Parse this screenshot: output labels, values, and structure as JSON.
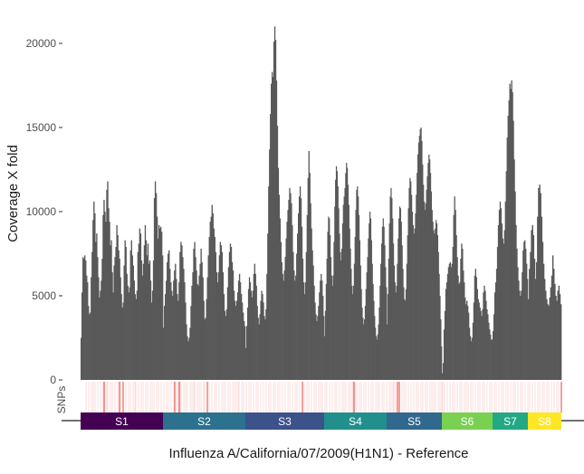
{
  "chart_data": {
    "type": "bar",
    "xlabel": "Influenza A/California/07/2009(H1N1) - Reference",
    "ylabel": "Coverage X fold",
    "ylim": [
      0,
      21500
    ],
    "yticks": [
      0,
      5000,
      10000,
      15000,
      20000
    ],
    "grid": false,
    "bar_color": "#595959",
    "snp_track_label": "SNPs",
    "snp_color": "#e8413a",
    "segments": [
      {
        "name": "S1",
        "color": "#440154",
        "coverage": [
          2500,
          5200,
          7300,
          7200,
          7400,
          7100,
          6200,
          5800,
          4400,
          3900,
          4000,
          6100,
          7600,
          9500,
          10600,
          9900,
          8200,
          8700,
          7300,
          6100,
          4900,
          5300,
          5900,
          7200,
          9800,
          10700,
          10000,
          9400,
          11300,
          11800,
          10200,
          9400,
          8000,
          8300,
          6400,
          5200,
          6800,
          7300,
          7900,
          9200,
          8600,
          7700,
          7200,
          6100,
          5100,
          4300,
          4600,
          6800,
          8300,
          7900,
          6300,
          5600,
          5200,
          5500,
          7700,
          8300,
          7400,
          6800,
          5900,
          5100,
          4800,
          5300,
          7600,
          8100,
          9000,
          8700,
          7100,
          6200,
          6900,
          8000,
          9200,
          8300,
          7400,
          8100,
          6900,
          7100,
          5900,
          4600,
          5300,
          7100,
          10800,
          11800,
          11100,
          9700,
          8400,
          9200,
          9000,
          9100,
          8800,
          7400
        ]
      },
      {
        "name": "S2",
        "color": "#2c728e",
        "coverage": [
          3100,
          4400,
          5100,
          5900,
          7000,
          7500,
          7700,
          6600,
          5800,
          5300,
          5000,
          5900,
          6500,
          6900,
          6000,
          5100,
          4700,
          5800,
          7600,
          8200,
          8000,
          7300,
          6600,
          5800,
          4600,
          3300,
          2600,
          2300,
          2500,
          3100,
          4400,
          5600,
          6400,
          7800,
          8200,
          7300,
          6500,
          5700,
          5600,
          6200,
          6900,
          7800,
          7000,
          6100,
          4700,
          3600,
          3700,
          4800,
          6100,
          7400,
          8500,
          9400,
          9700,
          10400,
          9900,
          9000,
          8500,
          7600,
          6400,
          5800,
          6400,
          7400,
          8200,
          8000,
          7600,
          6400,
          5100,
          4100,
          3800,
          4200,
          5500,
          6700,
          7600,
          8100,
          7900,
          7000,
          6500,
          5300,
          4700,
          4400,
          4700,
          5200,
          5900,
          6300,
          5800,
          5100,
          4600,
          4000,
          3500,
          3200
        ]
      },
      {
        "name": "S3",
        "color": "#3b528b",
        "coverage": [
          1900,
          3200,
          4300,
          5400,
          6100,
          5800,
          5300,
          4900,
          5300,
          6300,
          6900,
          6300,
          5600,
          4400,
          3700,
          3300,
          3900,
          4700,
          5300,
          5100,
          4600,
          3800,
          3600,
          4200,
          6300,
          8700,
          11500,
          13700,
          15800,
          17600,
          18300,
          18000,
          20100,
          21000,
          20200,
          17800,
          15100,
          12600,
          11000,
          9600,
          8200,
          7000,
          6300,
          5900,
          6500,
          7300,
          8400,
          9400,
          10100,
          10700,
          11400,
          11100,
          10500,
          9200,
          7600,
          6500,
          5900,
          6200,
          7500,
          8700,
          9900,
          10900,
          11500,
          10800,
          9100,
          7200,
          5800,
          5100,
          5800,
          7600,
          9800,
          12000,
          13600,
          12300,
          10500,
          9000,
          7700,
          6800,
          5600,
          4600,
          3900,
          3500,
          3800,
          4400,
          5200,
          5900,
          6300,
          5900,
          5000,
          3800
        ]
      },
      {
        "name": "S4",
        "color": "#21908c",
        "coverage": [
          2600,
          4100,
          5700,
          7200,
          8800,
          9700,
          9600,
          8600,
          7300,
          6200,
          5600,
          6200,
          8200,
          10300,
          11900,
          12700,
          12400,
          11500,
          10200,
          8700,
          7600,
          7100,
          7800,
          9300,
          10400,
          10900,
          11400,
          12300,
          12900,
          12600,
          11600,
          10400,
          9000,
          7800,
          6600,
          5600,
          5100,
          5600,
          6900,
          8500,
          10100,
          11300,
          11500,
          10900,
          9800,
          8300,
          6800,
          5400,
          4300,
          3700,
          3300,
          3600,
          4400,
          5400,
          6400,
          7300,
          8400,
          9300,
          10000,
          9600,
          8300,
          6900,
          5700,
          4700,
          3800,
          3100,
          2600,
          2400,
          2700,
          3300,
          4300,
          5600,
          6900,
          8100,
          9100,
          9600,
          9100,
          8000,
          6700,
          5500
        ]
      },
      {
        "name": "S5",
        "color": "#31688e",
        "coverage": [
          3300,
          5100,
          7200,
          9300,
          10900,
          11400,
          10800,
          9600,
          8100,
          6800,
          5800,
          5200,
          5600,
          6900,
          8400,
          9600,
          10300,
          10200,
          9400,
          8000,
          6600,
          5500,
          4800,
          4700,
          5400,
          6900,
          8600,
          10200,
          11400,
          12000,
          11800,
          11000,
          10000,
          9200,
          8700,
          9000,
          9900,
          11000,
          12300,
          13400,
          14100,
          14500,
          14900,
          15000,
          14200,
          12800,
          11600,
          10600,
          10100,
          10500,
          11300,
          12100,
          12900,
          13400,
          13100,
          12300,
          11200,
          10100,
          9400,
          8900,
          8700,
          9000,
          9500,
          9300,
          8600,
          7600,
          6300,
          5000,
          3600,
          2000
        ]
      },
      {
        "name": "S6",
        "color": "#7ad151",
        "coverage": [
          400,
          1000,
          3000,
          4100,
          5400,
          5800,
          6300,
          6700,
          6900,
          7000,
          6700,
          6900,
          7900,
          9800,
          10900,
          10100,
          8600,
          7300,
          6200,
          5700,
          5800,
          7200,
          8100,
          7800,
          6500,
          5800,
          4900,
          4500,
          4700,
          4400,
          4000,
          3100,
          2600,
          2300,
          2500,
          3400,
          4600,
          6200,
          6600,
          6100,
          5400,
          4800,
          4600,
          4300,
          4100,
          3800,
          4200,
          5200,
          5600,
          5300,
          4700,
          4200,
          3900,
          3400,
          3000,
          2700,
          2400,
          2400
        ]
      },
      {
        "name": "S7",
        "color": "#22a884",
        "coverage": [
          2900,
          3900,
          5200,
          5800,
          6600,
          7900,
          9200,
          10100,
          10600,
          10200,
          9300,
          8400,
          8100,
          8900,
          10600,
          12400,
          14400,
          15700,
          16600,
          17600,
          17300,
          17800,
          17100,
          15400,
          13100,
          11200,
          9200,
          7800,
          6700,
          5900,
          5300,
          5000,
          5300,
          6400,
          7700,
          8200,
          8300,
          7800,
          6900,
          6000
        ]
      },
      {
        "name": "S8",
        "color": "#fde725",
        "coverage": [
          4800,
          6600,
          7600,
          8900,
          9200,
          8600,
          7200,
          6000,
          7000,
          9700,
          11400,
          11600,
          11100,
          9700,
          8200,
          6900,
          6000,
          5300,
          4800,
          4500,
          4400,
          4900,
          5500,
          6200,
          7400,
          6600,
          5700,
          5000,
          4700,
          5300,
          5600,
          5100,
          4500
        ]
      }
    ],
    "snp_positions": [
      6,
      9,
      12,
      14,
      16,
      19,
      22,
      25,
      27,
      29,
      30,
      33,
      35,
      38,
      41,
      44,
      47,
      50,
      53,
      55,
      58,
      60,
      61,
      64,
      67,
      69,
      72,
      74,
      77,
      79,
      81,
      84,
      86,
      89,
      92,
      95,
      97,
      100,
      103,
      106,
      108,
      110,
      111,
      114,
      116,
      118,
      121,
      123,
      125,
      126,
      129,
      131,
      133,
      136,
      137,
      140,
      142,
      145,
      148,
      150,
      153,
      156,
      158,
      160,
      163,
      165,
      168,
      170,
      172,
      174,
      175,
      178,
      180,
      183,
      186,
      188,
      191,
      194,
      196,
      199,
      202,
      205,
      208,
      210,
      213,
      215,
      218,
      220,
      223,
      226,
      229,
      231,
      234,
      237,
      239,
      242,
      245,
      247,
      250,
      252,
      255,
      258,
      260,
      263,
      265,
      267,
      270,
      272,
      275,
      278,
      281,
      283,
      286,
      289,
      291,
      293,
      296,
      298,
      300,
      301,
      303,
      305,
      308,
      310,
      313,
      315,
      318,
      321,
      323,
      326,
      328,
      330,
      333,
      335,
      338,
      341,
      343,
      345,
      346,
      348,
      350,
      352,
      355,
      357,
      359,
      362,
      365,
      368,
      371,
      373,
      376,
      378,
      381,
      383,
      386,
      388,
      390,
      392,
      395,
      397,
      399,
      400,
      402,
      405,
      408,
      411,
      413,
      416,
      419,
      421,
      424,
      426,
      428,
      431,
      433,
      436,
      439,
      441,
      444,
      446,
      449,
      452,
      454,
      457,
      459,
      462,
      465,
      467,
      470,
      472,
      475,
      478,
      480,
      483,
      486,
      488,
      491,
      494,
      496,
      499,
      502,
      505,
      507,
      510,
      512,
      515,
      517,
      520,
      523,
      526,
      528
    ],
    "snp_major_positions": [
      26,
      43,
      47,
      104,
      109,
      140,
      245,
      302,
      350,
      352,
      531
    ]
  }
}
